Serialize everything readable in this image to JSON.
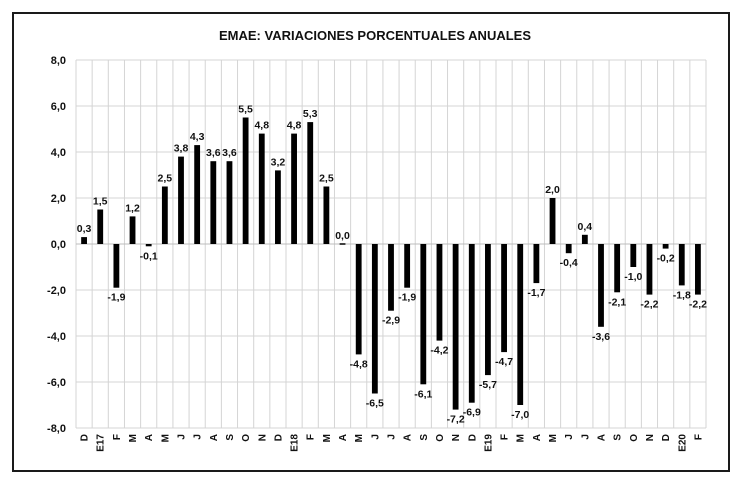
{
  "chart_data": {
    "type": "bar",
    "title": "EMAE: VARIACIONES PORCENTUALES ANUALES",
    "xlabel": "",
    "ylabel": "",
    "ylim": [
      -8,
      8
    ],
    "yticks": [
      "8,0",
      "6,0",
      "4,0",
      "2,0",
      "0,0",
      "-2,0",
      "-4,0",
      "-6,0",
      "-8,0"
    ],
    "ytick_values": [
      8,
      6,
      4,
      2,
      0,
      -2,
      -4,
      -6,
      -8
    ],
    "grid": true,
    "bar_color": "#000000",
    "categories": [
      "D",
      "E17",
      "F",
      "M",
      "A",
      "M",
      "J",
      "J",
      "A",
      "S",
      "O",
      "N",
      "D",
      "E18",
      "F",
      "M",
      "A",
      "M",
      "J",
      "J",
      "A",
      "S",
      "O",
      "N",
      "D",
      "E19",
      "F",
      "M",
      "A",
      "M",
      "J",
      "J",
      "A",
      "S",
      "O",
      "N",
      "D",
      "E20",
      "F"
    ],
    "values": [
      0.3,
      1.5,
      -1.9,
      1.2,
      -0.1,
      2.5,
      3.8,
      4.3,
      3.6,
      3.6,
      5.5,
      4.8,
      3.2,
      4.8,
      5.3,
      2.5,
      0.0,
      -4.8,
      -6.5,
      -2.9,
      -1.9,
      -6.1,
      -4.2,
      -7.2,
      -6.9,
      -5.7,
      -4.7,
      -7.0,
      -1.7,
      2.0,
      -0.4,
      0.4,
      -3.6,
      -2.1,
      -1.0,
      -2.2,
      -0.2,
      -1.8,
      -2.2
    ],
    "data_labels": [
      "0,3",
      "1,5",
      "-1,9",
      "1,2",
      "-0,1",
      "2,5",
      "3,8",
      "4,3",
      "3,6",
      "3,6",
      "5,5",
      "4,8",
      "3,2",
      "4,8",
      "5,3",
      "2,5",
      "0,0",
      "-4,8",
      "-6,5",
      "-2,9",
      "-1,9",
      "-6,1",
      "-4,2",
      "-7,2",
      "-6,9",
      "-5,7",
      "-4,7",
      "-7,0",
      "-1,7",
      "2,0",
      "-0,4",
      "0,4",
      "-3,6",
      "-2,1",
      "-1,0",
      "-2,2",
      "-0,2",
      "-1,8",
      "-2,2"
    ]
  }
}
